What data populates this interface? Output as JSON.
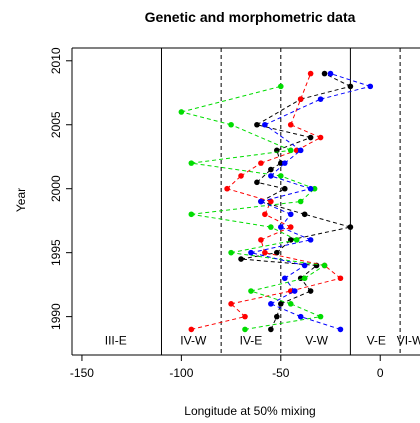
{
  "chart_data": {
    "type": "scatter",
    "title": "Genetic and morphometric data",
    "xlabel": "Longitude at 50% mixing",
    "ylabel": "Year",
    "xlim": [
      -155,
      20
    ],
    "ylim": [
      1987,
      2011
    ],
    "x_ticks": [
      -150,
      -100,
      -50,
      0
    ],
    "y_ticks": [
      1990,
      1995,
      2000,
      2005,
      2010
    ],
    "colors": {
      "black": "#000000",
      "red": "#ff0000",
      "green": "#00dd00",
      "blue": "#0000ff"
    },
    "vlines": [
      {
        "x": -110,
        "style": "solid"
      },
      {
        "x": -80,
        "style": "dashed"
      },
      {
        "x": -50,
        "style": "dashed"
      },
      {
        "x": -15,
        "style": "solid"
      },
      {
        "x": 10,
        "style": "dashed"
      }
    ],
    "regions": [
      {
        "label": "III-E",
        "x": -133
      },
      {
        "label": "IV-W",
        "x": -94
      },
      {
        "label": "IV-E",
        "x": -65
      },
      {
        "label": "V-W",
        "x": -32
      },
      {
        "label": "V-E",
        "x": -2
      },
      {
        "label": "VI-W",
        "x": 15
      }
    ],
    "series": [
      {
        "color": "black",
        "points": [
          [
            -55,
            1989
          ],
          [
            -52,
            1990
          ],
          [
            -50,
            1991
          ],
          [
            -35,
            1992
          ],
          [
            -40,
            1993
          ],
          [
            -32,
            1994
          ],
          [
            -52,
            1995
          ],
          [
            -70,
            1994.5
          ],
          [
            -45,
            1996
          ],
          [
            -38,
            1998
          ],
          [
            -15,
            1997
          ],
          [
            -60,
            1999
          ],
          [
            -48,
            2000
          ],
          [
            -62,
            2000.5
          ],
          [
            -55,
            2001.5
          ],
          [
            -50,
            2002
          ],
          [
            -52,
            2003
          ],
          [
            -35,
            2004
          ],
          [
            -62,
            2005
          ],
          [
            -40,
            2007
          ],
          [
            -15,
            2008
          ],
          [
            -28,
            2009
          ]
        ]
      },
      {
        "color": "red",
        "points": [
          [
            -95,
            1989
          ],
          [
            -68,
            1990
          ],
          [
            -75,
            1991
          ],
          [
            -45,
            1992
          ],
          [
            -20,
            1993
          ],
          [
            -28,
            1994
          ],
          [
            -58,
            1995
          ],
          [
            -60,
            1996
          ],
          [
            -45,
            1997
          ],
          [
            -58,
            1998
          ],
          [
            -55,
            1999
          ],
          [
            -77,
            2000
          ],
          [
            -70,
            2001
          ],
          [
            -60,
            2002
          ],
          [
            -42,
            2003
          ],
          [
            -30,
            2004
          ],
          [
            -45,
            2005
          ],
          [
            -40,
            2007
          ],
          [
            -35,
            2009
          ]
        ]
      },
      {
        "color": "green",
        "points": [
          [
            -68,
            1989
          ],
          [
            -30,
            1990
          ],
          [
            -45,
            1991
          ],
          [
            -65,
            1992
          ],
          [
            -38,
            1993
          ],
          [
            -28,
            1994
          ],
          [
            -75,
            1995
          ],
          [
            -42,
            1996
          ],
          [
            -55,
            1997
          ],
          [
            -95,
            1998
          ],
          [
            -40,
            1999
          ],
          [
            -33,
            2000
          ],
          [
            -50,
            2001
          ],
          [
            -95,
            2002
          ],
          [
            -45,
            2003
          ],
          [
            -75,
            2005
          ],
          [
            -100,
            2006
          ],
          [
            -50,
            2008
          ]
        ]
      },
      {
        "color": "blue",
        "points": [
          [
            -20,
            1989
          ],
          [
            -40,
            1990
          ],
          [
            -55,
            1991
          ],
          [
            -43,
            1992
          ],
          [
            -48,
            1993
          ],
          [
            -38,
            1994
          ],
          [
            -65,
            1995
          ],
          [
            -35,
            1996
          ],
          [
            -50,
            1997
          ],
          [
            -45,
            1998
          ],
          [
            -60,
            1999
          ],
          [
            -35,
            2000
          ],
          [
            -55,
            2001
          ],
          [
            -48,
            2002
          ],
          [
            -40,
            2003
          ],
          [
            -58,
            2005
          ],
          [
            -30,
            2007
          ],
          [
            -5,
            2008
          ],
          [
            -25,
            2009
          ]
        ]
      }
    ]
  }
}
